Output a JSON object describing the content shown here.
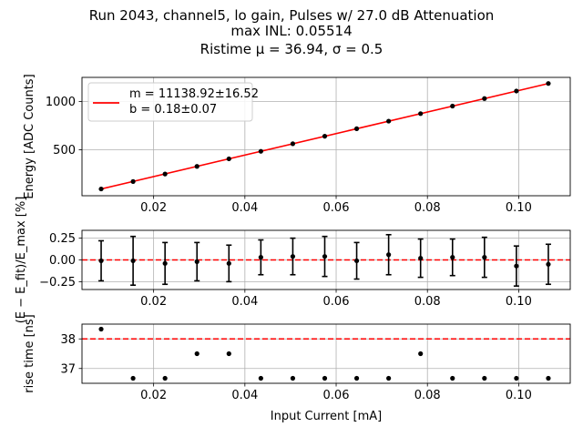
{
  "figure": {
    "title_lines": [
      "Run 2043, channel5, lo gain, Pulses w/ 27.0 dB Attenuation",
      "max INL: 0.05514",
      "Ristime μ = 36.94, σ = 0.5"
    ]
  },
  "chart_data": [
    {
      "type": "line",
      "panel": "energy",
      "ylabel": "Energy [ADC Counts]",
      "xlim": [
        0.0043,
        0.1113
      ],
      "ylim": [
        25,
        1250
      ],
      "x_ticks": [
        0.02,
        0.04,
        0.06,
        0.08,
        0.1
      ],
      "x_tick_labels": [
        "0.02",
        "0.04",
        "0.06",
        "0.08",
        "0.10"
      ],
      "y_ticks": [
        500,
        1000
      ],
      "y_tick_labels": [
        "500",
        "1000"
      ],
      "grid": true,
      "legend_position": "top-left",
      "legend": [
        "m = 11138.92±16.52",
        "b = 0.18±0.07"
      ],
      "fit": {
        "slope": 11138.92,
        "intercept": 0.18,
        "color": "#ff0000"
      },
      "points": {
        "x": [
          0.0085,
          0.0155,
          0.0225,
          0.0295,
          0.0365,
          0.0435,
          0.0505,
          0.0575,
          0.0645,
          0.0715,
          0.0785,
          0.0855,
          0.0925,
          0.0995,
          0.1065
        ],
        "y": [
          95,
          172,
          250,
          329,
          407,
          485,
          563,
          641,
          719,
          797,
          875,
          953,
          1031,
          1109,
          1187
        ],
        "color": "#000000"
      }
    },
    {
      "type": "scatter",
      "panel": "residual",
      "ylabel": "(E − E_fit)/E_max [%]",
      "xlim": [
        0.0043,
        0.1113
      ],
      "ylim": [
        -0.34,
        0.34
      ],
      "x_ticks": [
        0.02,
        0.04,
        0.06,
        0.08,
        0.1
      ],
      "x_tick_labels": [
        "0.02",
        "0.04",
        "0.06",
        "0.08",
        "0.10"
      ],
      "y_ticks": [
        -0.25,
        0.0,
        0.25
      ],
      "y_tick_labels": [
        "−0.25",
        "0.00",
        "0.25"
      ],
      "grid": true,
      "reference_line": {
        "y": 0.0,
        "style": "dashed",
        "color": "#ff0000"
      },
      "points": {
        "x": [
          0.0085,
          0.0155,
          0.0225,
          0.0295,
          0.0365,
          0.0435,
          0.0505,
          0.0575,
          0.0645,
          0.0715,
          0.0785,
          0.0855,
          0.0925,
          0.0995,
          0.1065
        ],
        "y": [
          -0.01,
          -0.01,
          -0.04,
          -0.02,
          -0.04,
          0.03,
          0.04,
          0.04,
          -0.01,
          0.06,
          0.02,
          0.03,
          0.03,
          -0.07,
          -0.05
        ],
        "yerr": [
          0.23,
          0.28,
          0.24,
          0.22,
          0.21,
          0.2,
          0.21,
          0.23,
          0.21,
          0.23,
          0.22,
          0.21,
          0.23,
          0.23,
          0.23
        ],
        "color": "#000000"
      }
    },
    {
      "type": "scatter",
      "panel": "risetime",
      "xlabel": "Input Current [mA]",
      "ylabel": "rise time [ns]",
      "xlim": [
        0.0043,
        0.1113
      ],
      "ylim": [
        36.5,
        38.5
      ],
      "x_ticks": [
        0.02,
        0.04,
        0.06,
        0.08,
        0.1
      ],
      "x_tick_labels": [
        "0.02",
        "0.04",
        "0.06",
        "0.08",
        "0.10"
      ],
      "y_ticks": [
        37,
        38
      ],
      "y_tick_labels": [
        "37",
        "38"
      ],
      "grid": true,
      "reference_line": {
        "y": 38.0,
        "style": "dashed",
        "color": "#ff0000"
      },
      "points": {
        "x": [
          0.0085,
          0.0155,
          0.0225,
          0.0295,
          0.0365,
          0.0435,
          0.0505,
          0.0575,
          0.0645,
          0.0715,
          0.0785,
          0.0855,
          0.0925,
          0.0995,
          0.1065
        ],
        "y": [
          38.33,
          36.67,
          36.67,
          37.5,
          37.5,
          36.67,
          36.67,
          36.67,
          36.67,
          36.67,
          37.5,
          36.67,
          36.67,
          36.67,
          36.67
        ],
        "color": "#000000"
      }
    }
  ]
}
